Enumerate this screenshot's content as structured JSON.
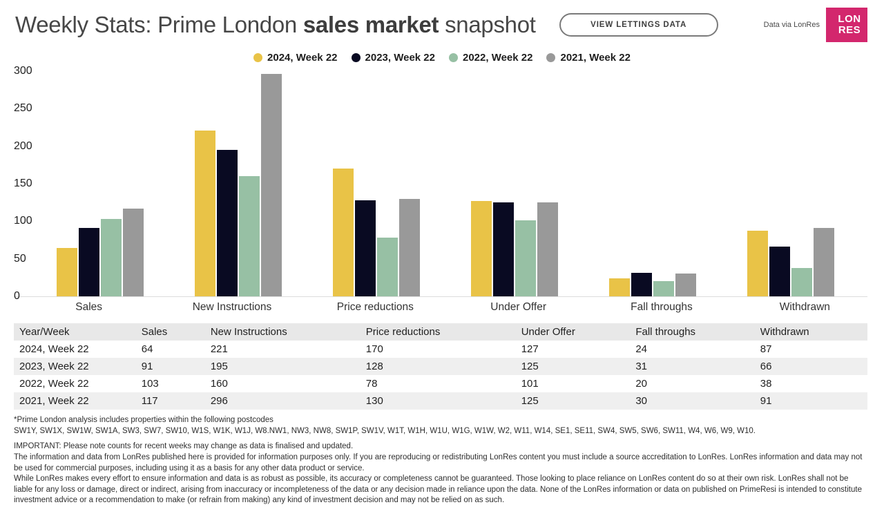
{
  "header": {
    "title_prefix": "Weekly Stats: Prime London ",
    "title_bold": "sales market",
    "title_suffix": " snapshot",
    "button_label": "VIEW LETTINGS DATA",
    "attribution": "Data via LonRes",
    "logo_line1": "LON",
    "logo_line2": "RES",
    "logo_color": "#d3276d"
  },
  "chart_data": {
    "type": "bar",
    "title": "Weekly Stats: Prime London sales market snapshot",
    "categories": [
      "Sales",
      "New Instructions",
      "Price reductions",
      "Under Offer",
      "Fall throughs",
      "Withdrawn"
    ],
    "series": [
      {
        "name": "2024, Week 22",
        "color": "#e9c347",
        "values": [
          64,
          221,
          170,
          127,
          24,
          87
        ]
      },
      {
        "name": "2023, Week 22",
        "color": "#090a22",
        "values": [
          91,
          195,
          128,
          125,
          31,
          66
        ]
      },
      {
        "name": "2022, Week 22",
        "color": "#97c0a4",
        "values": [
          103,
          160,
          78,
          101,
          20,
          38
        ]
      },
      {
        "name": "2021, Week 22",
        "color": "#999999",
        "values": [
          117,
          296,
          130,
          125,
          30,
          91
        ]
      }
    ],
    "xlabel": "",
    "ylabel": "",
    "ylim": [
      0,
      300
    ],
    "yticks": [
      300,
      250,
      200,
      150,
      100,
      50,
      0
    ],
    "grid": false,
    "legend_position": "top-center",
    "baseline_color": "#dcdcdc"
  },
  "table": {
    "columns": [
      "Year/Week",
      "Sales",
      "New Instructions",
      "Price reductions",
      "Under Offer",
      "Fall throughs",
      "Withdrawn"
    ],
    "col_widths": [
      "14.3%",
      "8.1%",
      "18.2%",
      "18.2%",
      "13.4%",
      "14.6%",
      "13.2%"
    ],
    "rows": [
      [
        "2024, Week 22",
        "64",
        "221",
        "170",
        "127",
        "24",
        "87"
      ],
      [
        "2023, Week 22",
        "91",
        "195",
        "128",
        "125",
        "31",
        "66"
      ],
      [
        "2022, Week 22",
        "103",
        "160",
        "78",
        "101",
        "20",
        "38"
      ],
      [
        "2021, Week 22",
        "117",
        "296",
        "130",
        "125",
        "30",
        "91"
      ]
    ]
  },
  "footnotes": {
    "postcode_note": "*Prime London analysis includes properties within the following postcodes",
    "postcodes": "SW1Y, SW1X, SW1W, SW1A, SW3, SW7, SW10, W1S, W1K, W1J, W8.NW1, NW3, NW8, SW1P, SW1V, W1T, W1H, W1U, W1G, W1W, W2, W11, W14, SE1, SE11, SW4, SW5, SW6, SW11, W4, W6, W9, W10.",
    "important": "IMPORTANT: Please note counts for recent weeks may change as data is finalised and updated.",
    "disclaimer1": "The information and data from LonRes published here is provided for information purposes only. If you are reproducing or redistributing LonRes content you must include a source accreditation to LonRes. LonRes information and data may not be used for commercial purposes, including using it as a basis for any other data product or service.",
    "disclaimer2": "While LonRes makes every effort to ensure information and data is as robust as possible, its accuracy or completeness cannot be guaranteed. Those looking to place reliance on LonRes content do so at their own risk. LonRes shall not be liable for any loss or damage, direct or indirect, arising from inaccuracy or incompleteness of the data or any decision made in reliance upon the data. None of the LonRes information or data on published on PrimeResi is intended to constitute investment advice or a recommendation to make (or refrain from making) any kind of investment decision and may not be relied on as such."
  }
}
